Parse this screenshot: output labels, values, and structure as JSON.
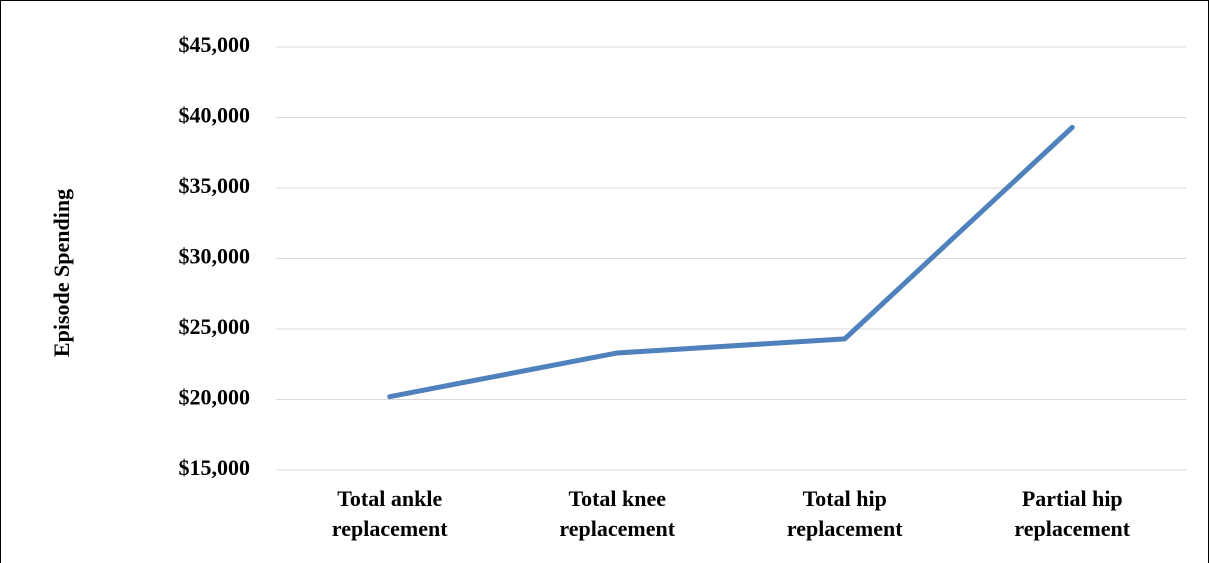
{
  "chart_data": {
    "type": "line",
    "y_axis_label": "Episode Spending",
    "categories": [
      "Total ankle replacement",
      "Total knee replacement",
      "Total hip replacement",
      "Partial hip replacement"
    ],
    "values": [
      20200,
      23300,
      24300,
      39300
    ],
    "color": "#4f81bd",
    "ylim": [
      15000,
      45000
    ],
    "yticks": [
      {
        "value": 15000,
        "label": "$15,000"
      },
      {
        "value": 20000,
        "label": "$20,000"
      },
      {
        "value": 25000,
        "label": "$25,000"
      },
      {
        "value": 30000,
        "label": "$30,000"
      },
      {
        "value": 35000,
        "label": "$35,000"
      },
      {
        "value": 40000,
        "label": "$40,000"
      },
      {
        "value": 45000,
        "label": "$45,000"
      }
    ],
    "grid": true
  }
}
